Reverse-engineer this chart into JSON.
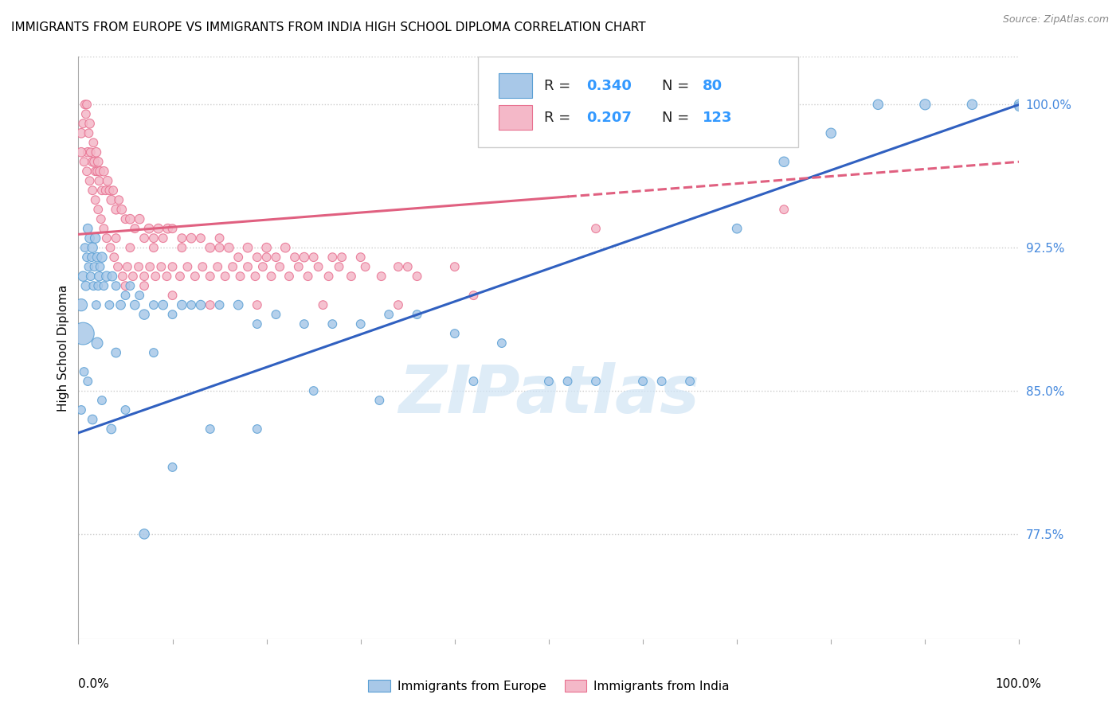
{
  "title": "IMMIGRANTS FROM EUROPE VS IMMIGRANTS FROM INDIA HIGH SCHOOL DIPLOMA CORRELATION CHART",
  "source": "Source: ZipAtlas.com",
  "ylabel": "High School Diploma",
  "yticks": [
    0.775,
    0.85,
    0.925,
    1.0
  ],
  "ytick_labels": [
    "77.5%",
    "85.0%",
    "92.5%",
    "100.0%"
  ],
  "xlim": [
    0.0,
    1.0
  ],
  "ylim": [
    0.72,
    1.025
  ],
  "blue_R": 0.34,
  "blue_N": 80,
  "pink_R": 0.207,
  "pink_N": 123,
  "blue_color": "#a8c8e8",
  "blue_edge_color": "#5a9fd4",
  "pink_color": "#f4b8c8",
  "pink_edge_color": "#e87090",
  "blue_line_color": "#3060c0",
  "pink_line_color": "#e06080",
  "legend_label_blue": "Immigrants from Europe",
  "legend_label_pink": "Immigrants from India",
  "watermark_text": "ZIPatlas",
  "blue_line_x0": 0.0,
  "blue_line_y0": 0.828,
  "blue_line_x1": 1.0,
  "blue_line_y1": 1.0,
  "pink_line_x0": 0.0,
  "pink_line_y0": 0.932,
  "pink_line_x1": 1.0,
  "pink_line_y1": 0.97,
  "pink_line_dash_start": 0.52,
  "grid_color": "#cccccc",
  "grid_style": "dotted",
  "xtick_positions": [
    0.0,
    0.1,
    0.2,
    0.3,
    0.4,
    0.5,
    0.6,
    0.7,
    0.8,
    0.9,
    1.0
  ],
  "blue_x": [
    0.003,
    0.005,
    0.007,
    0.008,
    0.009,
    0.01,
    0.011,
    0.012,
    0.013,
    0.014,
    0.015,
    0.016,
    0.017,
    0.018,
    0.019,
    0.02,
    0.021,
    0.022,
    0.023,
    0.025,
    0.027,
    0.03,
    0.033,
    0.036,
    0.04,
    0.045,
    0.05,
    0.055,
    0.06,
    0.065,
    0.07,
    0.08,
    0.09,
    0.1,
    0.11,
    0.12,
    0.13,
    0.15,
    0.17,
    0.19,
    0.21,
    0.24,
    0.27,
    0.3,
    0.33,
    0.36,
    0.4,
    0.45,
    0.5,
    0.55,
    0.6,
    0.65,
    0.7,
    0.75,
    0.8,
    0.85,
    0.9,
    0.95,
    1.0,
    1.0,
    0.003,
    0.006,
    0.01,
    0.015,
    0.025,
    0.035,
    0.05,
    0.07,
    0.1,
    0.14,
    0.19,
    0.25,
    0.32,
    0.42,
    0.52,
    0.62,
    0.005,
    0.02,
    0.04,
    0.08
  ],
  "blue_y": [
    0.895,
    0.91,
    0.925,
    0.905,
    0.92,
    0.935,
    0.915,
    0.93,
    0.91,
    0.92,
    0.925,
    0.905,
    0.915,
    0.93,
    0.895,
    0.92,
    0.905,
    0.91,
    0.915,
    0.92,
    0.905,
    0.91,
    0.895,
    0.91,
    0.905,
    0.895,
    0.9,
    0.905,
    0.895,
    0.9,
    0.89,
    0.895,
    0.895,
    0.89,
    0.895,
    0.895,
    0.895,
    0.895,
    0.895,
    0.885,
    0.89,
    0.885,
    0.885,
    0.885,
    0.89,
    0.89,
    0.88,
    0.875,
    0.855,
    0.855,
    0.855,
    0.855,
    0.935,
    0.97,
    0.985,
    1.0,
    1.0,
    1.0,
    1.0,
    0.999,
    0.84,
    0.86,
    0.855,
    0.835,
    0.845,
    0.83,
    0.84,
    0.775,
    0.81,
    0.83,
    0.83,
    0.85,
    0.845,
    0.855,
    0.855,
    0.855,
    0.88,
    0.875,
    0.87,
    0.87
  ],
  "blue_sizes": [
    120,
    80,
    60,
    70,
    60,
    70,
    60,
    70,
    60,
    60,
    80,
    60,
    60,
    80,
    60,
    70,
    60,
    70,
    60,
    80,
    60,
    80,
    60,
    70,
    60,
    70,
    60,
    60,
    70,
    60,
    80,
    60,
    70,
    60,
    70,
    60,
    70,
    60,
    70,
    60,
    60,
    60,
    60,
    60,
    60,
    60,
    60,
    60,
    60,
    60,
    60,
    60,
    70,
    80,
    80,
    80,
    90,
    80,
    80,
    70,
    60,
    60,
    60,
    70,
    60,
    70,
    60,
    80,
    60,
    60,
    60,
    60,
    60,
    60,
    60,
    60,
    400,
    100,
    70,
    60
  ],
  "pink_x": [
    0.003,
    0.005,
    0.007,
    0.008,
    0.009,
    0.01,
    0.011,
    0.012,
    0.013,
    0.015,
    0.016,
    0.017,
    0.018,
    0.019,
    0.02,
    0.021,
    0.022,
    0.023,
    0.025,
    0.027,
    0.029,
    0.031,
    0.033,
    0.035,
    0.037,
    0.04,
    0.043,
    0.046,
    0.05,
    0.055,
    0.06,
    0.065,
    0.07,
    0.075,
    0.08,
    0.085,
    0.09,
    0.095,
    0.1,
    0.11,
    0.12,
    0.13,
    0.14,
    0.15,
    0.16,
    0.17,
    0.18,
    0.19,
    0.2,
    0.21,
    0.22,
    0.23,
    0.24,
    0.25,
    0.27,
    0.3,
    0.35,
    0.4,
    0.003,
    0.006,
    0.009,
    0.012,
    0.015,
    0.018,
    0.021,
    0.024,
    0.027,
    0.03,
    0.034,
    0.038,
    0.042,
    0.047,
    0.052,
    0.058,
    0.064,
    0.07,
    0.076,
    0.082,
    0.088,
    0.094,
    0.1,
    0.108,
    0.116,
    0.124,
    0.132,
    0.14,
    0.148,
    0.156,
    0.164,
    0.172,
    0.18,
    0.188,
    0.196,
    0.205,
    0.214,
    0.224,
    0.234,
    0.244,
    0.255,
    0.266,
    0.277,
    0.29,
    0.305,
    0.322,
    0.34,
    0.36,
    0.04,
    0.055,
    0.08,
    0.11,
    0.15,
    0.2,
    0.28,
    0.55,
    0.75,
    0.42,
    0.34,
    0.26,
    0.19,
    0.14,
    0.1,
    0.07,
    0.05
  ],
  "pink_y": [
    0.985,
    0.99,
    1.0,
    0.995,
    1.0,
    0.975,
    0.985,
    0.99,
    0.975,
    0.97,
    0.98,
    0.97,
    0.965,
    0.975,
    0.965,
    0.97,
    0.96,
    0.965,
    0.955,
    0.965,
    0.955,
    0.96,
    0.955,
    0.95,
    0.955,
    0.945,
    0.95,
    0.945,
    0.94,
    0.94,
    0.935,
    0.94,
    0.93,
    0.935,
    0.93,
    0.935,
    0.93,
    0.935,
    0.935,
    0.93,
    0.93,
    0.93,
    0.925,
    0.93,
    0.925,
    0.92,
    0.925,
    0.92,
    0.925,
    0.92,
    0.925,
    0.92,
    0.92,
    0.92,
    0.92,
    0.92,
    0.915,
    0.915,
    0.975,
    0.97,
    0.965,
    0.96,
    0.955,
    0.95,
    0.945,
    0.94,
    0.935,
    0.93,
    0.925,
    0.92,
    0.915,
    0.91,
    0.915,
    0.91,
    0.915,
    0.91,
    0.915,
    0.91,
    0.915,
    0.91,
    0.915,
    0.91,
    0.915,
    0.91,
    0.915,
    0.91,
    0.915,
    0.91,
    0.915,
    0.91,
    0.915,
    0.91,
    0.915,
    0.91,
    0.915,
    0.91,
    0.915,
    0.91,
    0.915,
    0.91,
    0.915,
    0.91,
    0.915,
    0.91,
    0.915,
    0.91,
    0.93,
    0.925,
    0.925,
    0.925,
    0.925,
    0.92,
    0.92,
    0.935,
    0.945,
    0.9,
    0.895,
    0.895,
    0.895,
    0.895,
    0.9,
    0.905,
    0.905
  ],
  "pink_sizes": [
    70,
    60,
    60,
    60,
    60,
    70,
    60,
    70,
    60,
    70,
    60,
    70,
    60,
    70,
    60,
    70,
    60,
    70,
    60,
    70,
    60,
    70,
    60,
    70,
    60,
    70,
    60,
    70,
    60,
    70,
    60,
    70,
    60,
    70,
    60,
    70,
    60,
    70,
    60,
    60,
    70,
    60,
    70,
    60,
    70,
    60,
    70,
    60,
    70,
    60,
    70,
    60,
    70,
    60,
    60,
    60,
    60,
    60,
    70,
    60,
    60,
    60,
    60,
    60,
    60,
    60,
    60,
    60,
    60,
    60,
    60,
    60,
    60,
    60,
    60,
    60,
    60,
    60,
    60,
    60,
    60,
    60,
    60,
    60,
    60,
    60,
    60,
    60,
    60,
    60,
    60,
    60,
    60,
    60,
    60,
    60,
    60,
    60,
    60,
    60,
    60,
    60,
    60,
    60,
    60,
    60,
    60,
    60,
    60,
    60,
    60,
    60,
    60,
    60,
    60,
    60,
    60,
    60,
    60,
    60,
    60,
    60,
    60
  ]
}
